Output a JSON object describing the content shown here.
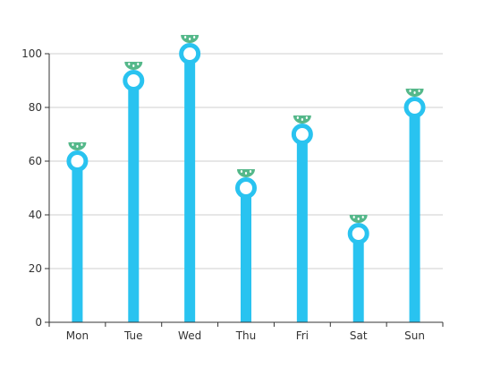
{
  "chart_data": {
    "type": "bar",
    "categories": [
      "Mon",
      "Tue",
      "Wed",
      "Thu",
      "Fri",
      "Sat",
      "Sun"
    ],
    "values": [
      60,
      90,
      100,
      50,
      70,
      33,
      80
    ],
    "ylim": [
      0,
      100
    ],
    "yticks": [
      "0",
      "20",
      "40",
      "60",
      "80",
      "100"
    ],
    "grid": true,
    "title": "",
    "xlabel": "",
    "ylabel": "",
    "marker": "ring",
    "decoration": "watermelon-slice-icon"
  },
  "colors": {
    "bar": "#29c3f0",
    "marker_fill": "#ffffff",
    "watermelon_rind": "#55b88a",
    "watermelon_seed": "#ffffff",
    "grid": "#cfcfcf",
    "axis": "#333333",
    "label": "#333333"
  }
}
